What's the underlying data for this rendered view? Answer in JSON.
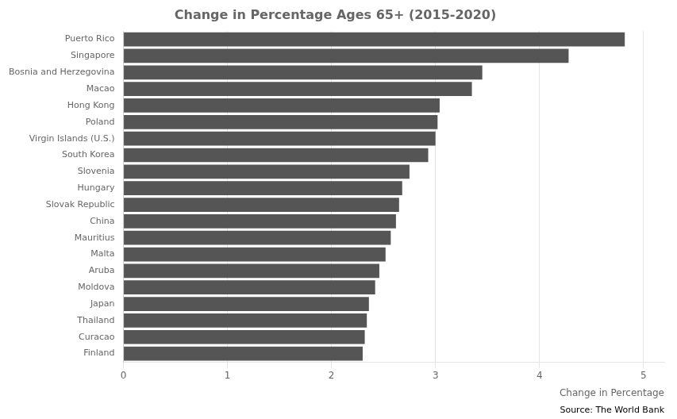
{
  "chart_data": {
    "type": "bar",
    "orientation": "horizontal",
    "title": "Change in Percentage Ages 65+ (2015-2020)",
    "xlabel": "Change in Percentage",
    "annotations": [
      "Source: The World Bank"
    ],
    "categories": [
      "Finland",
      "Curacao",
      "Thailand",
      "Japan",
      "Moldova",
      "Aruba",
      "Malta",
      "Mauritius",
      "China",
      "Slovak Republic",
      "Hungary",
      "Slovenia",
      "South Korea",
      "Virgin Islands (U.S.)",
      "Poland",
      "Hong Kong",
      "Macao",
      "Bosnia and Herzegovina",
      "Singapore",
      "Puerto Rico"
    ],
    "values": [
      2.3,
      2.32,
      2.34,
      2.36,
      2.42,
      2.46,
      2.52,
      2.57,
      2.62,
      2.65,
      2.68,
      2.75,
      2.93,
      3.0,
      3.02,
      3.04,
      3.35,
      3.45,
      4.28,
      4.82
    ],
    "color": "#555555",
    "xlim": [
      0,
      5.2
    ],
    "xticks": [
      0,
      1,
      2,
      3,
      4,
      5
    ],
    "grid": true
  }
}
